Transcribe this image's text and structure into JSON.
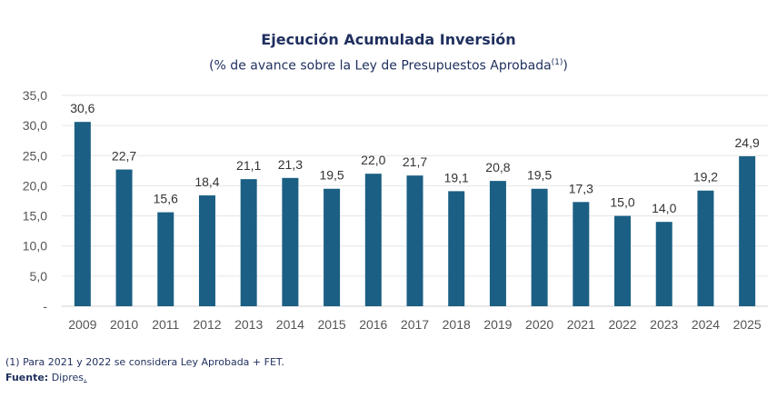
{
  "chart_data": {
    "type": "bar",
    "title": "Ejecución Acumulada Inversión",
    "subtitle_main": "(% de avance sobre la Ley de Presupuestos Aprobada",
    "subtitle_sup": "(1)",
    "subtitle_end": ")",
    "categories": [
      "2009",
      "2010",
      "2011",
      "2012",
      "2013",
      "2014",
      "2015",
      "2016",
      "2017",
      "2018",
      "2019",
      "2020",
      "2021",
      "2022",
      "2023",
      "2024",
      "2025"
    ],
    "values": [
      30.6,
      22.7,
      15.6,
      18.4,
      21.1,
      21.3,
      19.5,
      22.0,
      21.7,
      19.1,
      20.8,
      19.5,
      17.3,
      15.0,
      14.0,
      19.2,
      24.9
    ],
    "value_labels": [
      "30,6",
      "22,7",
      "15,6",
      "18,4",
      "21,1",
      "21,3",
      "19,5",
      "22,0",
      "21,7",
      "19,1",
      "20,8",
      "19,5",
      "17,3",
      "15,0",
      "14,0",
      "19,2",
      "24,9"
    ],
    "y_ticks": [
      0,
      5,
      10,
      15,
      20,
      25,
      30,
      35
    ],
    "y_tick_labels": [
      "-",
      "5,0",
      "10,0",
      "15,0",
      "20,0",
      "25,0",
      "30,0",
      "35,0"
    ],
    "ylim": [
      0,
      35
    ],
    "grid": true,
    "bar_color": "#1b5f84",
    "title_color": "#1f2f5e"
  },
  "notes": {
    "footnote": "(1) Para 2021 y 2022 se considera Ley Aprobada + FET.",
    "source_label": "Fuente:",
    "source_text": " Dipres",
    "source_dot": "."
  }
}
